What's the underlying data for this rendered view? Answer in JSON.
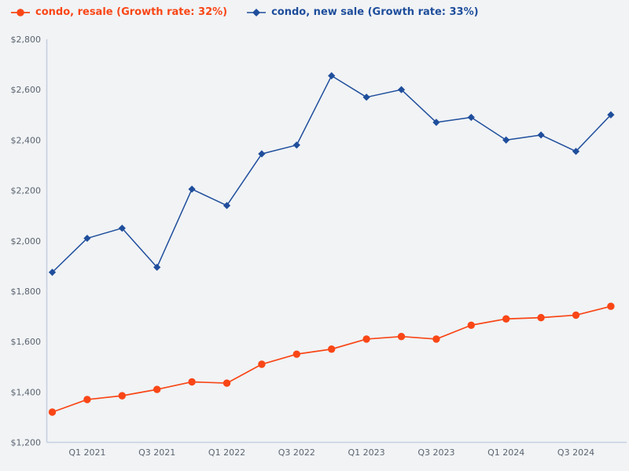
{
  "page": {
    "background_color": "#f1f3f5",
    "axis_color": "#c6d0e0",
    "tick_text_color": "#5b6470"
  },
  "chart_data": {
    "type": "line",
    "title": "",
    "xlabel": "",
    "ylabel": "",
    "grid": false,
    "legend_position": "top-left",
    "ylim": [
      1200,
      2800
    ],
    "y_ticks": [
      1200,
      1400,
      1600,
      1800,
      2000,
      2200,
      2400,
      2600,
      2800
    ],
    "y_tick_prefix": "$",
    "x": [
      "Q4 2020",
      "Q1 2021",
      "Q2 2021",
      "Q3 2021",
      "Q4 2021",
      "Q1 2022",
      "Q2 2022",
      "Q3 2022",
      "Q4 2022",
      "Q1 2023",
      "Q2 2023",
      "Q3 2023",
      "Q4 2023",
      "Q1 2024",
      "Q2 2024",
      "Q3 2024",
      "Q4 2024"
    ],
    "x_ticks": [
      {
        "i": 1,
        "label": "Q1 2021"
      },
      {
        "i": 3,
        "label": "Q3 2021"
      },
      {
        "i": 5,
        "label": "Q1 2022"
      },
      {
        "i": 7,
        "label": "Q3 2022"
      },
      {
        "i": 9,
        "label": "Q1 2023"
      },
      {
        "i": 11,
        "label": "Q3 2023"
      },
      {
        "i": 13,
        "label": "Q1 2024"
      },
      {
        "i": 15,
        "label": "Q3 2024"
      }
    ],
    "series": [
      {
        "name": "condo, resale",
        "legend_label": "condo, resale (Growth rate: 32%)",
        "growth_rate": "32%",
        "color": "#f94616",
        "marker": "circle",
        "marker_size": 4.7,
        "line_width": 1.7,
        "values": [
          1320,
          1370,
          1385,
          1410,
          1440,
          1435,
          1510,
          1550,
          1570,
          1610,
          1620,
          1610,
          1665,
          1690,
          1695,
          1705,
          1740
        ]
      },
      {
        "name": "condo, new sale",
        "legend_label": "condo, new sale (Growth rate: 33%)",
        "growth_rate": "33%",
        "color": "#1f4e9c",
        "marker": "diamond",
        "marker_size": 4.6,
        "line_width": 1.5,
        "values": [
          1875,
          2010,
          2050,
          1895,
          2205,
          2140,
          2345,
          2380,
          2655,
          2570,
          2600,
          2470,
          2490,
          2400,
          2420,
          2355,
          2500
        ]
      }
    ]
  }
}
